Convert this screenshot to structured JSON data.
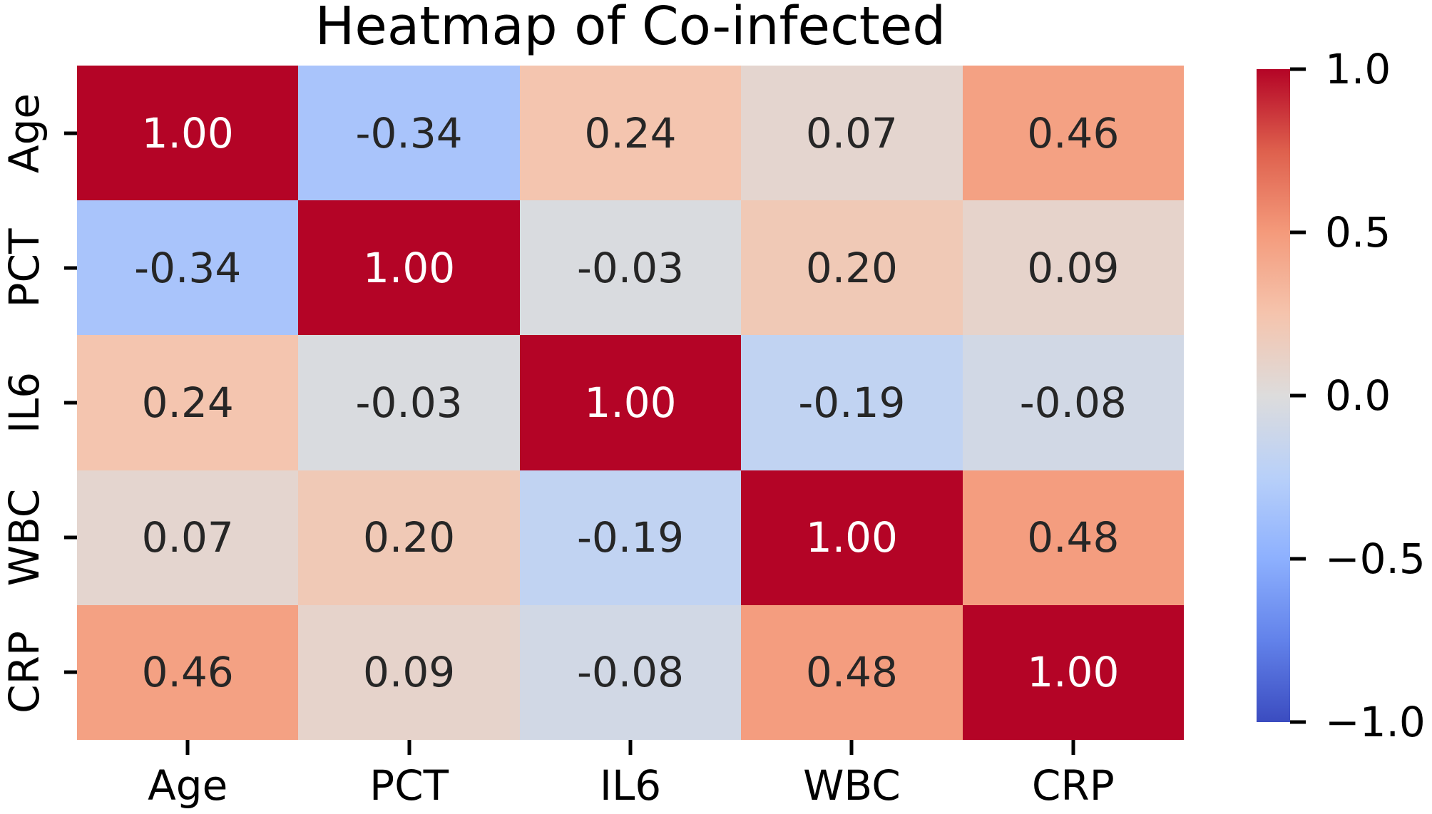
{
  "figure": {
    "background": "#ffffff"
  },
  "chart_data": {
    "type": "heatmap",
    "title": "Heatmap of Co-infected",
    "x_categories": [
      "Age",
      "PCT",
      "IL6",
      "WBC",
      "CRP"
    ],
    "y_categories": [
      "Age",
      "PCT",
      "IL6",
      "WBC",
      "CRP"
    ],
    "matrix": [
      [
        1.0,
        -0.34,
        0.24,
        0.07,
        0.46
      ],
      [
        -0.34,
        1.0,
        -0.03,
        0.2,
        0.09
      ],
      [
        0.24,
        -0.03,
        1.0,
        -0.19,
        -0.08
      ],
      [
        0.07,
        0.2,
        -0.19,
        1.0,
        0.48
      ],
      [
        0.46,
        0.09,
        -0.08,
        0.48,
        1.0
      ]
    ],
    "cell_text": [
      [
        "1.00",
        "-0.34",
        "0.24",
        "0.07",
        "0.46"
      ],
      [
        "-0.34",
        "1.00",
        "-0.03",
        "0.20",
        "0.09"
      ],
      [
        "0.24",
        "-0.03",
        "1.00",
        "-0.19",
        "-0.08"
      ],
      [
        "0.07",
        "0.20",
        "-0.19",
        "1.00",
        "0.48"
      ],
      [
        "0.46",
        "0.09",
        "-0.08",
        "0.48",
        "1.00"
      ]
    ],
    "value_range": [
      -1,
      1
    ],
    "grid_on": false,
    "colormap": {
      "name": "coolwarm",
      "stops": [
        {
          "t": 0.0,
          "color": "#3b4cc0"
        },
        {
          "t": 0.125,
          "color": "#6282ea"
        },
        {
          "t": 0.25,
          "color": "#8db0fe"
        },
        {
          "t": 0.375,
          "color": "#b8d0f9"
        },
        {
          "t": 0.5,
          "color": "#dddcdc"
        },
        {
          "t": 0.625,
          "color": "#f5c4ad"
        },
        {
          "t": 0.75,
          "color": "#f49a7b"
        },
        {
          "t": 0.875,
          "color": "#de604d"
        },
        {
          "t": 1.0,
          "color": "#b40426"
        }
      ]
    },
    "colorbar": {
      "position": "right",
      "tick_labels": [
        "1.0",
        "0.5",
        "0.0",
        "−0.5",
        "−1.0"
      ],
      "tick_values": [
        1.0,
        0.5,
        0.0,
        -0.5,
        -1.0
      ]
    },
    "annotation_colors": {
      "light": "#ffffff",
      "dark": "#262626",
      "light_text_threshold": 0.99
    },
    "axis_color": "#000000"
  }
}
